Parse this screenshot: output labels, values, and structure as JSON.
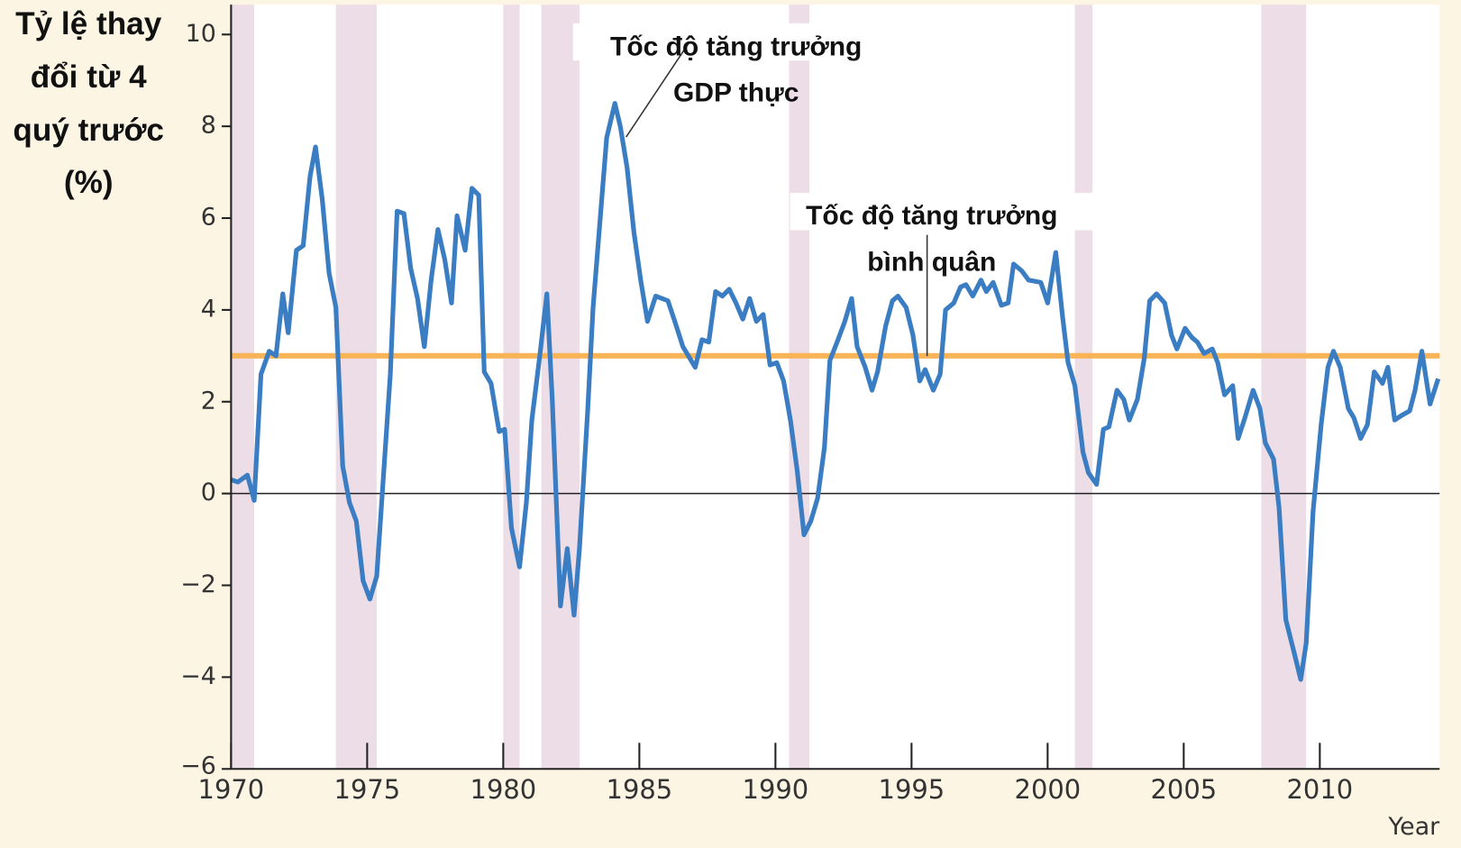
{
  "chart_data": {
    "type": "line",
    "y_label": [
      "Tỷ lệ thay",
      "đổi từ 4",
      "quý trước",
      "(%)"
    ],
    "x_label": "Year",
    "annotations": [
      {
        "text": [
          "Tốc độ tăng trưởng",
          "GDP thực"
        ]
      },
      {
        "text": [
          "Tốc độ tăng trưởng",
          "bình quân"
        ]
      }
    ],
    "xlim": [
      1970,
      2014.4
    ],
    "ylim": [
      -6,
      10.65
    ],
    "xticks": [
      1970,
      1975,
      1980,
      1985,
      1990,
      1995,
      2000,
      2005,
      2010
    ],
    "yticks": [
      {
        "value": -6,
        "label": "−6"
      },
      {
        "value": -4,
        "label": "−4"
      },
      {
        "value": -2,
        "label": "−2"
      },
      0,
      2,
      4,
      6,
      8,
      10
    ],
    "recessions": [
      [
        1970,
        1970.85
      ],
      [
        1973.85,
        1975.35
      ],
      [
        1980,
        1980.6
      ],
      [
        1981.4,
        1982.8
      ],
      [
        1990.5,
        1991.25
      ],
      [
        2001,
        2001.65
      ],
      [
        2007.85,
        2009.5
      ]
    ],
    "recession_color": "#eddde6",
    "average": 3,
    "average_color": "#f9b457",
    "series": [
      {
        "name": "GDP thực",
        "color": "#3a7dc3",
        "x": [
          1970,
          1970.25,
          1970.6,
          1970.85,
          1971.1,
          1971.4,
          1971.65,
          1971.9,
          1972.1,
          1972.4,
          1972.65,
          1972.9,
          1973.1,
          1973.35,
          1973.6,
          1973.85,
          1974.1,
          1974.35,
          1974.6,
          1974.85,
          1975.1,
          1975.35,
          1975.6,
          1975.85,
          1976.1,
          1976.35,
          1976.6,
          1976.85,
          1977.1,
          1977.35,
          1977.6,
          1977.85,
          1978.1,
          1978.3,
          1978.6,
          1978.85,
          1979.1,
          1979.3,
          1979.55,
          1979.85,
          1980.05,
          1980.3,
          1980.6,
          1980.85,
          1981.05,
          1981.35,
          1981.6,
          1981.8,
          1982.1,
          1982.35,
          1982.6,
          1982.8,
          1983.1,
          1983.3,
          1983.8,
          1984.1,
          1984.3,
          1984.55,
          1984.8,
          1985.05,
          1985.3,
          1985.6,
          1986.05,
          1986.3,
          1986.6,
          1987.05,
          1987.3,
          1987.55,
          1987.8,
          1988.05,
          1988.3,
          1988.55,
          1988.8,
          1989.05,
          1989.3,
          1989.55,
          1989.8,
          1990.05,
          1990.3,
          1990.55,
          1990.8,
          1991.05,
          1991.3,
          1991.55,
          1991.8,
          1992,
          1992.3,
          1992.55,
          1992.8,
          1993,
          1993.3,
          1993.55,
          1993.75,
          1994.05,
          1994.3,
          1994.5,
          1994.8,
          1995.05,
          1995.3,
          1995.5,
          1995.8,
          1996.05,
          1996.25,
          1996.55,
          1996.8,
          1997,
          1997.25,
          1997.55,
          1997.75,
          1998,
          1998.3,
          1998.55,
          1998.75,
          1999.05,
          1999.3,
          1999.75,
          2000,
          2000.3,
          2000.55,
          2000.75,
          2001,
          2001.3,
          2001.5,
          2001.8,
          2002.05,
          2002.25,
          2002.55,
          2002.8,
          2003,
          2003.3,
          2003.55,
          2003.75,
          2004,
          2004.3,
          2004.55,
          2004.75,
          2005.05,
          2005.3,
          2005.5,
          2005.75,
          2006.05,
          2006.25,
          2006.5,
          2006.8,
          2007,
          2007.25,
          2007.55,
          2007.8,
          2008,
          2008.3,
          2008.5,
          2008.75,
          2009.05,
          2009.3,
          2009.5,
          2009.75,
          2010.05,
          2010.3,
          2010.5,
          2010.75,
          2011.05,
          2011.25,
          2011.5,
          2011.75,
          2012,
          2012.3,
          2012.5,
          2012.75,
          2013,
          2013.3,
          2013.5,
          2013.75,
          2014.05,
          2014.35
        ],
        "values": [
          0.3,
          0.25,
          0.4,
          -0.15,
          2.6,
          3.1,
          3.0,
          4.35,
          3.5,
          5.3,
          5.4,
          6.9,
          7.55,
          6.4,
          4.8,
          4.05,
          0.6,
          -0.2,
          -0.6,
          -1.9,
          -2.3,
          -1.8,
          0.4,
          2.6,
          6.15,
          6.1,
          4.9,
          4.25,
          3.2,
          4.65,
          5.75,
          5.1,
          4.15,
          6.05,
          5.3,
          6.65,
          6.5,
          2.65,
          2.4,
          1.35,
          1.4,
          -0.75,
          -1.6,
          -0.2,
          1.6,
          3.05,
          4.35,
          2.05,
          -2.45,
          -1.2,
          -2.65,
          -1.2,
          1.8,
          4.05,
          7.75,
          8.5,
          8.0,
          7.1,
          5.7,
          4.65,
          3.75,
          4.3,
          4.2,
          3.75,
          3.2,
          2.75,
          3.35,
          3.3,
          4.4,
          4.3,
          4.45,
          4.15,
          3.8,
          4.25,
          3.75,
          3.9,
          2.8,
          2.85,
          2.45,
          1.6,
          0.5,
          -0.9,
          -0.6,
          -0.1,
          1.0,
          2.9,
          3.35,
          3.75,
          4.25,
          3.2,
          2.75,
          2.25,
          2.65,
          3.65,
          4.2,
          4.3,
          4.05,
          3.45,
          2.45,
          2.7,
          2.25,
          2.6,
          4.0,
          4.15,
          4.5,
          4.55,
          4.3,
          4.65,
          4.4,
          4.6,
          4.1,
          4.15,
          5.0,
          4.85,
          4.65,
          4.6,
          4.15,
          5.25,
          3.85,
          2.85,
          2.35,
          0.9,
          0.45,
          0.2,
          1.4,
          1.45,
          2.25,
          2.05,
          1.6,
          2.05,
          2.95,
          4.2,
          4.35,
          4.15,
          3.45,
          3.15,
          3.6,
          3.4,
          3.3,
          3.05,
          3.15,
          2.85,
          2.15,
          2.35,
          1.2,
          1.65,
          2.25,
          1.85,
          1.1,
          0.75,
          -0.3,
          -2.75,
          -3.45,
          -4.05,
          -3.25,
          -0.4,
          1.5,
          2.75,
          3.1,
          2.75,
          1.85,
          1.65,
          1.2,
          1.5,
          2.65,
          2.4,
          2.75,
          1.6,
          1.7,
          1.8,
          2.25,
          3.1,
          1.95,
          2.5
        ]
      }
    ]
  }
}
